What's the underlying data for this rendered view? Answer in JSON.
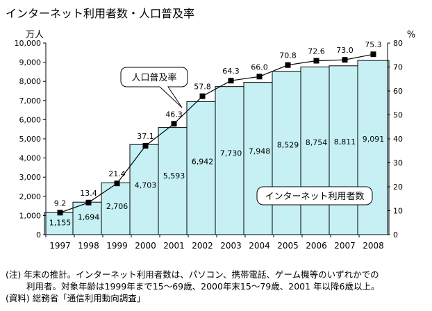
{
  "title": "インターネット利用者数・人口普及率",
  "chart_data": {
    "type": "bar",
    "categories": [
      "1997",
      "1998",
      "1999",
      "2000",
      "2001",
      "2002",
      "2003",
      "2004",
      "2005",
      "2006",
      "2007",
      "2008"
    ],
    "series": [
      {
        "name": "インターネット利用者数",
        "type": "bar",
        "axis": "left",
        "values": [
          1155,
          1694,
          2706,
          4703,
          5593,
          6942,
          7730,
          7948,
          8529,
          8754,
          8811,
          9091
        ],
        "labels": [
          "1,155",
          "1,694",
          "2,706",
          "4,703",
          "5,593",
          "6,942",
          "7,730",
          "7,948",
          "8,529",
          "8,754",
          "8,811",
          "9,091"
        ]
      },
      {
        "name": "人口普及率",
        "type": "line",
        "axis": "right",
        "values": [
          9.2,
          13.4,
          21.4,
          37.1,
          46.3,
          57.8,
          64.3,
          66.0,
          70.8,
          72.6,
          73.0,
          75.3
        ],
        "labels": [
          "9.2",
          "13.4",
          "21.4",
          "37.1",
          "46.3",
          "57.8",
          "64.3",
          "66.0",
          "70.8",
          "72.6",
          "73.0",
          "75.3"
        ]
      }
    ],
    "left_axis": {
      "unit": "万人",
      "ylim": [
        0,
        10000
      ],
      "ticks": [
        "0",
        "1,000",
        "2,000",
        "3,000",
        "4,000",
        "5,000",
        "6,000",
        "7,000",
        "8,000",
        "9,000",
        "10,000"
      ]
    },
    "right_axis": {
      "unit": "%",
      "ylim": [
        0,
        80
      ],
      "ticks": [
        "0",
        "10",
        "20",
        "30",
        "40",
        "50",
        "60",
        "70",
        "80"
      ]
    },
    "grid": false,
    "bar_color": "#c6f0f4",
    "line_color": "#000000"
  },
  "notes": [
    "(注) 年末の推計。インターネット利用者数は、パソコン、携帯電話、ゲーム機等のいずれかでの",
    "利用者。対象年齢は1999年まで15～69歳、2000年末15～79歳、2001 年以降6歳以上。",
    "(資料) 総務省「通信利用動向調査」"
  ]
}
